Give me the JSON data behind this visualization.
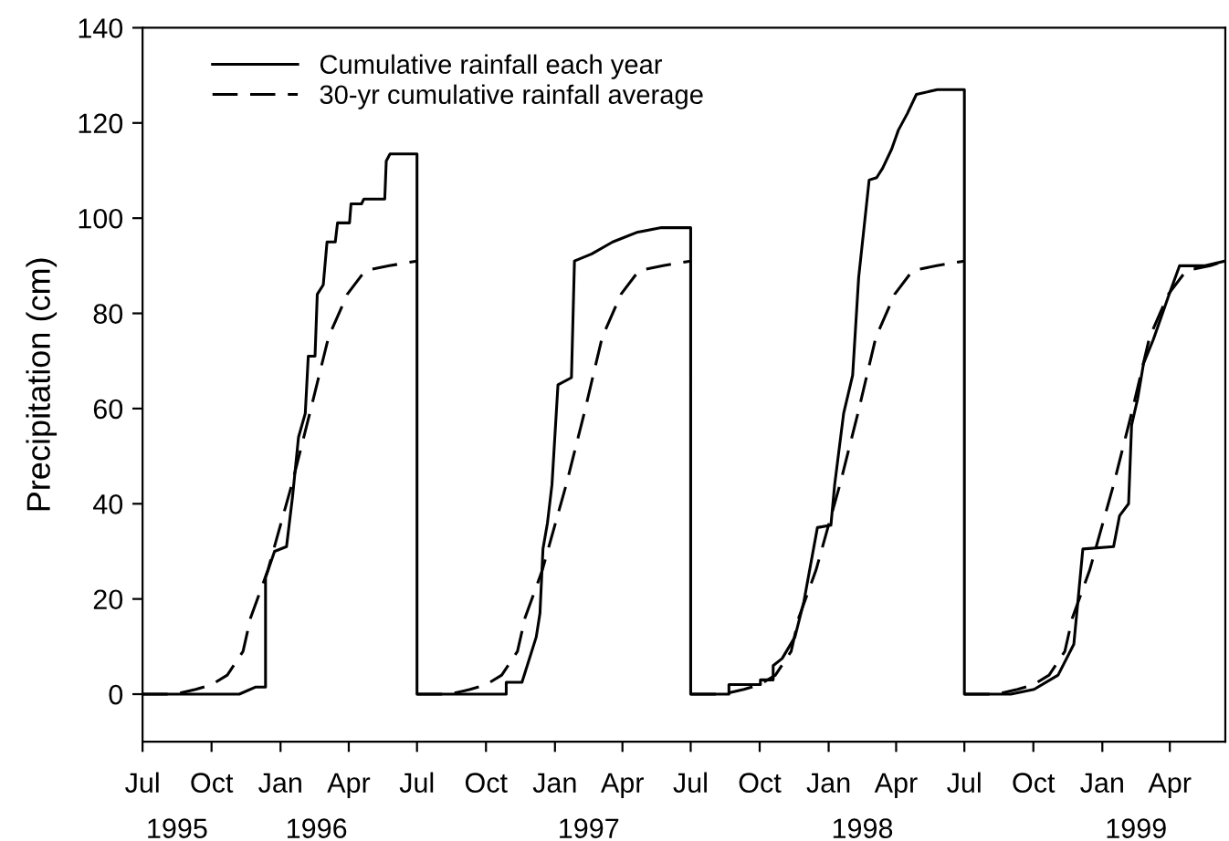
{
  "chart_data": {
    "type": "line",
    "ylabel": "Precipitation (cm)",
    "xlim": [
      "1995-07-01",
      "1999-06-14"
    ],
    "ylim": [
      -10,
      140
    ],
    "xticks": [
      {
        "value": "1995-07-01",
        "label": "Jul"
      },
      {
        "value": "1995-10-01",
        "label": "Oct"
      },
      {
        "value": "1996-01-01",
        "label": "Jan"
      },
      {
        "value": "1996-04-01",
        "label": "Apr"
      },
      {
        "value": "1996-07-01",
        "label": "Jul"
      },
      {
        "value": "1996-10-01",
        "label": "Oct"
      },
      {
        "value": "1997-01-01",
        "label": "Jan"
      },
      {
        "value": "1997-04-01",
        "label": "Apr"
      },
      {
        "value": "1997-07-01",
        "label": "Jul"
      },
      {
        "value": "1997-10-01",
        "label": "Oct"
      },
      {
        "value": "1998-01-01",
        "label": "Jan"
      },
      {
        "value": "1998-04-01",
        "label": "Apr"
      },
      {
        "value": "1998-07-01",
        "label": "Jul"
      },
      {
        "value": "1998-10-01",
        "label": "Oct"
      },
      {
        "value": "1999-01-01",
        "label": "Jan"
      },
      {
        "value": "1999-04-01",
        "label": "Apr"
      }
    ],
    "x2lim": [
      "1995-07-01",
      "1999-06-14"
    ],
    "x2ticks": [
      {
        "value": "1995-08-16",
        "label": "1995"
      },
      {
        "value": "1996-02-18",
        "label": "1996"
      },
      {
        "value": "1997-02-15",
        "label": "1997"
      },
      {
        "value": "1998-02-15",
        "label": "1998"
      },
      {
        "value": "1999-02-15",
        "label": "1999"
      }
    ],
    "yticks": [
      0,
      20,
      40,
      60,
      80,
      100,
      120,
      140
    ],
    "grid": false,
    "legend": "top left",
    "marker": "none",
    "series": [
      {
        "name": "Cumulative rainfall each year",
        "color": "#000000",
        "line_style": "solid",
        "x": [
          "1995-07-01",
          "1995-11-07",
          "1995-11-29",
          "1995-12-12",
          "1995-12-12",
          "1995-12-24",
          "1996-01-09",
          "1996-01-17",
          "1996-01-25",
          "1996-02-03",
          "1996-02-07",
          "1996-02-16",
          "1996-02-19",
          "1996-02-27",
          "1996-03-03",
          "1996-03-14",
          "1996-03-17",
          "1996-04-02",
          "1996-04-04",
          "1996-04-18",
          "1996-04-21",
          "1996-05-19",
          "1996-05-21",
          "1996-05-26",
          "1996-07-01",
          "1996-07-01",
          "1996-10-28",
          "1996-10-28",
          "1996-11-18",
          "1996-12-07",
          "1996-12-12",
          "1996-12-16",
          "1996-12-22",
          "1996-12-28",
          "1997-01-05",
          "1997-01-23",
          "1997-01-27",
          "1997-02-19",
          "1997-03-19",
          "1997-04-20",
          "1997-05-23",
          "1997-07-01",
          "1997-07-01",
          "1997-08-21",
          "1997-08-21",
          "1997-10-02",
          "1997-10-02",
          "1997-10-19",
          "1997-10-19",
          "1997-10-31",
          "1997-11-17",
          "1997-11-29",
          "1997-12-17",
          "1998-01-04",
          "1998-01-09",
          "1998-01-21",
          "1998-02-02",
          "1998-02-10",
          "1998-02-24",
          "1998-03-06",
          "1998-03-14",
          "1998-03-26",
          "1998-04-04",
          "1998-04-16",
          "1998-04-28",
          "1998-05-26",
          "1998-07-01",
          "1998-07-01",
          "1998-09-01",
          "1998-10-02",
          "1998-11-03",
          "1998-11-24",
          "1998-12-06",
          "1999-01-16",
          "1999-01-24",
          "1999-02-05",
          "1999-02-09",
          "1999-02-17",
          "1999-02-25",
          "1999-03-10",
          "1999-03-30",
          "1999-04-14",
          "1999-05-18",
          "1999-06-14"
        ],
        "values": [
          0,
          0,
          1.5,
          1.5,
          24.5,
          30,
          31,
          41.5,
          54,
          59,
          71,
          71,
          84,
          86,
          95,
          95,
          99,
          99,
          103,
          103,
          104,
          104,
          112,
          113.5,
          113.5,
          0,
          0,
          2.5,
          2.5,
          12,
          17,
          30.5,
          36,
          44,
          65,
          66.5,
          91,
          92.5,
          95,
          97,
          98,
          98,
          0,
          0,
          2,
          2,
          3,
          3,
          6,
          7.5,
          12,
          19.5,
          35,
          35.5,
          44,
          59,
          67,
          87.5,
          108,
          108.5,
          110.5,
          114.5,
          118.5,
          122,
          126,
          127,
          127,
          0,
          0,
          1,
          4,
          10.5,
          30.5,
          31,
          37.5,
          40,
          56.5,
          62,
          69.5,
          74.5,
          83.5,
          90,
          90,
          91
        ]
      },
      {
        "name": "30-yr cumulative rainfall average",
        "color": "#000000",
        "line_style": "dashed",
        "x": [
          "1995-07-01",
          "1995-08-14",
          "1995-09-10",
          "1995-10-01",
          "1995-10-22",
          "1995-11-12",
          "1995-11-22",
          "1995-12-15",
          "1996-01-16",
          "1996-02-09",
          "1996-03-05",
          "1996-03-30",
          "1996-04-23",
          "1996-05-25",
          "1996-07-01"
        ],
        "values": [
          0,
          0,
          1,
          2,
          4,
          9,
          16,
          26,
          44,
          59,
          75,
          84,
          89,
          90,
          91
        ]
      },
      {
        "color": "#000000",
        "line_style": "dashed",
        "x": [
          "1996-07-01",
          "1996-08-14",
          "1996-09-10",
          "1996-10-01",
          "1996-10-22",
          "1996-11-12",
          "1996-11-22",
          "1996-12-15",
          "1997-01-16",
          "1997-02-09",
          "1997-03-05",
          "1997-03-30",
          "1997-04-23",
          "1997-05-25",
          "1997-07-01"
        ],
        "values": [
          0,
          0,
          1,
          2,
          4,
          9,
          16,
          26,
          44,
          59,
          75,
          84,
          89,
          90,
          91
        ]
      },
      {
        "color": "#000000",
        "line_style": "dashed",
        "x": [
          "1997-07-01",
          "1997-08-14",
          "1997-09-10",
          "1997-10-01",
          "1997-10-22",
          "1997-11-12",
          "1997-11-22",
          "1997-12-15",
          "1998-01-16",
          "1998-02-09",
          "1998-03-05",
          "1998-03-30",
          "1998-04-23",
          "1998-05-25",
          "1998-07-01"
        ],
        "values": [
          0,
          0,
          1,
          2,
          4,
          9,
          16,
          26,
          44,
          59,
          75,
          84,
          89,
          90,
          91
        ]
      },
      {
        "color": "#000000",
        "line_style": "dashed",
        "x": [
          "1998-07-01",
          "1998-08-14",
          "1998-09-10",
          "1998-10-01",
          "1998-10-22",
          "1998-11-12",
          "1998-11-22",
          "1998-12-15",
          "1999-01-16",
          "1999-02-09",
          "1999-03-05",
          "1999-03-30",
          "1999-04-23",
          "1999-05-25",
          "1999-06-14"
        ],
        "values": [
          0,
          0,
          1,
          2,
          4,
          9,
          16,
          26,
          44,
          59,
          75,
          84,
          89,
          90,
          91
        ]
      }
    ]
  }
}
